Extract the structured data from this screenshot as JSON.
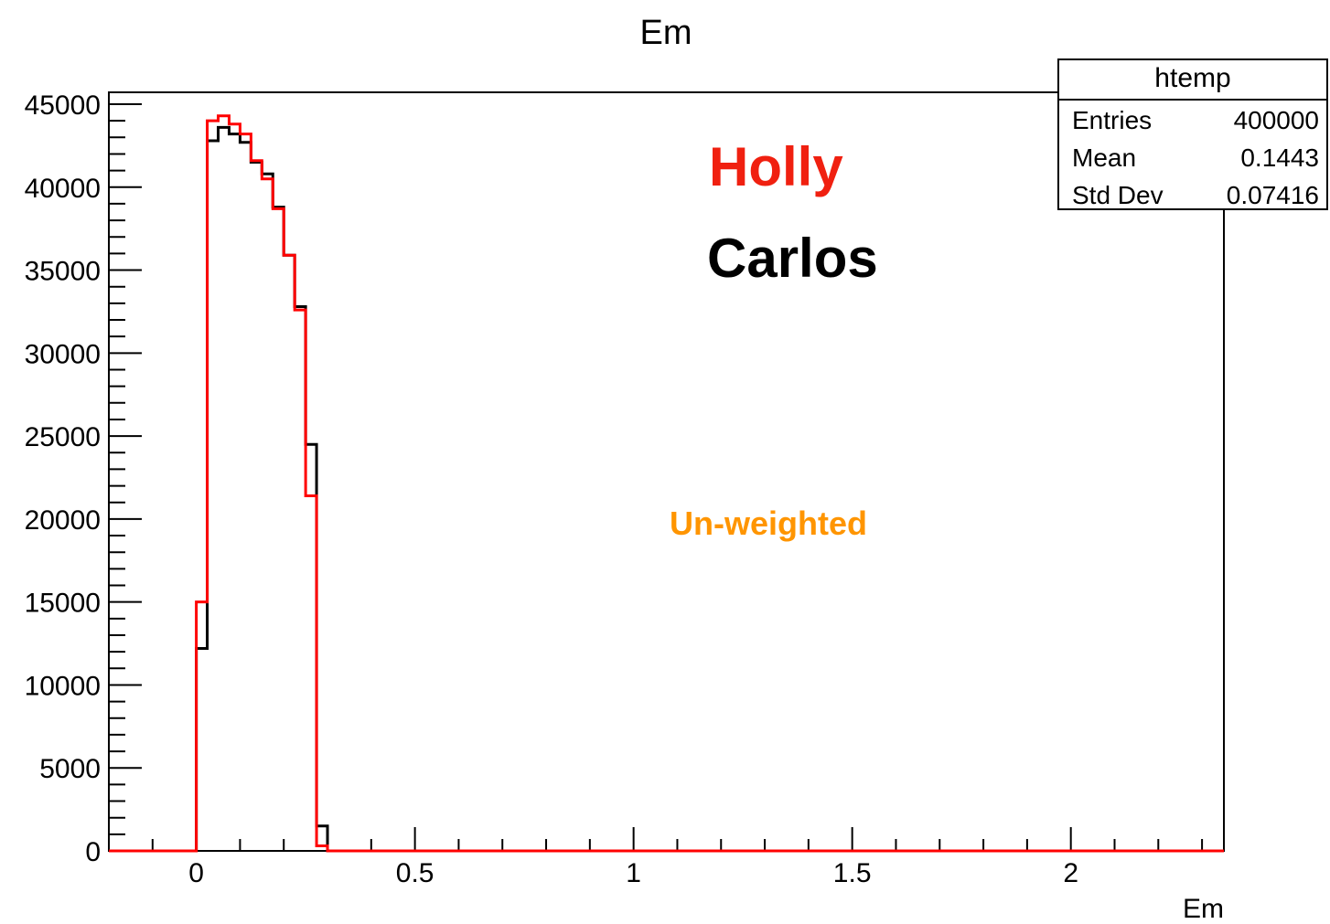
{
  "chart_data": {
    "type": "histogram",
    "title": "Em",
    "xlabel": "Em",
    "ylabel": "",
    "xlim": [
      -0.2,
      2.35
    ],
    "ylim": [
      0,
      45000
    ],
    "grid": false,
    "bin_width": 0.025,
    "x_ticks": [
      0,
      0.5,
      1,
      1.5,
      2
    ],
    "x_tick_labels": [
      "0",
      "0.5",
      "1",
      "1.5",
      "2"
    ],
    "y_ticks": [
      0,
      5000,
      10000,
      15000,
      20000,
      25000,
      30000,
      35000,
      40000,
      45000
    ],
    "y_tick_labels": [
      "0",
      "5000",
      "10000",
      "15000",
      "20000",
      "25000",
      "30000",
      "35000",
      "40000",
      "45000"
    ],
    "bin_edges": [
      0,
      0.025,
      0.05,
      0.075,
      0.1,
      0.125,
      0.15,
      0.175,
      0.2,
      0.225,
      0.25,
      0.275,
      0.3,
      0.325
    ],
    "series": [
      {
        "name": "Carlos",
        "color": "#000000",
        "values": [
          12200,
          42800,
          43600,
          43200,
          42700,
          41500,
          40800,
          38800,
          35900,
          32800,
          24500,
          1500,
          0
        ]
      },
      {
        "name": "Holly",
        "color": "#ff0000",
        "values": [
          15000,
          44000,
          44300,
          43800,
          43200,
          41600,
          40500,
          38700,
          35900,
          32600,
          21400,
          300,
          0
        ]
      }
    ],
    "annotations": [
      {
        "text": "Holly",
        "color": "#f02010"
      },
      {
        "text": "Carlos",
        "color": "#000000"
      },
      {
        "text": "Un-weighted",
        "color": "#ff9500"
      }
    ],
    "stats_box": {
      "title": "htemp",
      "rows": [
        {
          "label": "Entries",
          "value": "400000"
        },
        {
          "label": "Mean",
          "value": "0.1443"
        },
        {
          "label": "Std Dev",
          "value": "0.07416"
        }
      ]
    }
  }
}
